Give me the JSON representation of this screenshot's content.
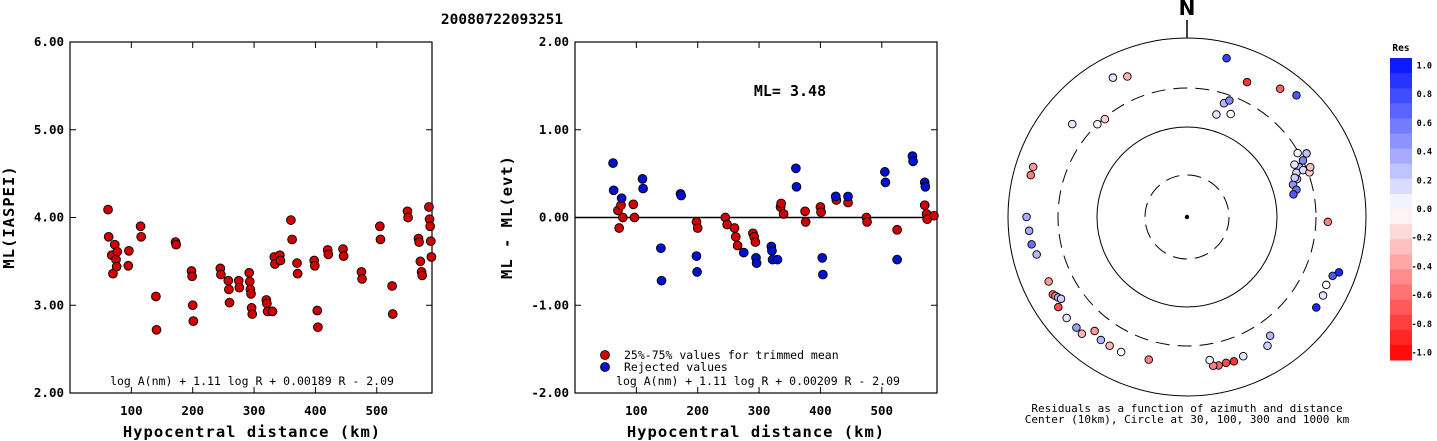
{
  "title": "20080722093251",
  "chart_data": [
    {
      "type": "scatter",
      "xlabel": "Hypocentral distance (km)",
      "ylabel": "ML(IASPEI)",
      "xlim": [
        0,
        590
      ],
      "ylim": [
        2.0,
        6.0
      ],
      "x_ticks": [
        100,
        200,
        300,
        400,
        500
      ],
      "y_ticks": [
        "2.00",
        "3.00",
        "4.00",
        "5.00",
        "6.00"
      ],
      "formula": "log A(nm) + 1.11 log R + 0.00189 R - 2.09",
      "points": [
        [
          62,
          4.09
        ],
        [
          63,
          3.78
        ],
        [
          68,
          3.57
        ],
        [
          70,
          3.36
        ],
        [
          73,
          3.69
        ],
        [
          75,
          3.52
        ],
        [
          76,
          3.44
        ],
        [
          77,
          3.61
        ],
        [
          95,
          3.45
        ],
        [
          96,
          3.62
        ],
        [
          115,
          3.9
        ],
        [
          116,
          3.78
        ],
        [
          140,
          3.1
        ],
        [
          141,
          2.72
        ],
        [
          172,
          3.72
        ],
        [
          173,
          3.69
        ],
        [
          198,
          3.39
        ],
        [
          199,
          3.33
        ],
        [
          200,
          3.0
        ],
        [
          201,
          2.82
        ],
        [
          245,
          3.42
        ],
        [
          246,
          3.35
        ],
        [
          258,
          3.28
        ],
        [
          259,
          3.18
        ],
        [
          260,
          3.03
        ],
        [
          275,
          3.28
        ],
        [
          276,
          3.2
        ],
        [
          292,
          3.37
        ],
        [
          293,
          3.27
        ],
        [
          294,
          3.18
        ],
        [
          295,
          3.13
        ],
        [
          296,
          2.97
        ],
        [
          297,
          2.9
        ],
        [
          320,
          3.06
        ],
        [
          321,
          3.02
        ],
        [
          322,
          2.93
        ],
        [
          330,
          2.93
        ],
        [
          333,
          3.55
        ],
        [
          334,
          3.47
        ],
        [
          342,
          3.57
        ],
        [
          343,
          3.51
        ],
        [
          360,
          3.97
        ],
        [
          362,
          3.75
        ],
        [
          370,
          3.48
        ],
        [
          371,
          3.36
        ],
        [
          398,
          3.51
        ],
        [
          399,
          3.45
        ],
        [
          403,
          2.94
        ],
        [
          404,
          2.75
        ],
        [
          420,
          3.63
        ],
        [
          421,
          3.58
        ],
        [
          445,
          3.64
        ],
        [
          446,
          3.56
        ],
        [
          475,
          3.38
        ],
        [
          476,
          3.3
        ],
        [
          505,
          3.9
        ],
        [
          506,
          3.75
        ],
        [
          525,
          3.22
        ],
        [
          526,
          2.9
        ],
        [
          550,
          4.07
        ],
        [
          551,
          4.0
        ],
        [
          568,
          3.76
        ],
        [
          569,
          3.72
        ],
        [
          571,
          3.5
        ],
        [
          573,
          3.38
        ],
        [
          574,
          3.34
        ],
        [
          585,
          4.12
        ],
        [
          586,
          3.98
        ],
        [
          587,
          3.9
        ],
        [
          588,
          3.73
        ],
        [
          589,
          3.55
        ]
      ]
    },
    {
      "type": "scatter",
      "xlabel": "Hypocentral distance (km)",
      "ylabel": "ML - ML(evt)",
      "xlim": [
        0,
        590
      ],
      "ylim": [
        -2.0,
        2.0
      ],
      "x_ticks": [
        100,
        200,
        300,
        400,
        500
      ],
      "y_ticks": [
        "-2.00",
        "-1.00",
        "0.00",
        "1.00",
        "2.00"
      ],
      "ml_label": "ML= 3.48",
      "legend": [
        "25%-75% values for trimmed mean",
        "Rejected values"
      ],
      "legend_colors": [
        "#d00000",
        "#0010d0"
      ],
      "formula": "log A(nm) + 1.11 log R + 0.00209 R - 2.09",
      "series": [
        {
          "name": "25%-75% values for trimmed mean",
          "color": "#d00000",
          "points": [
            [
              70,
              0.08
            ],
            [
              72,
              -0.12
            ],
            [
              75,
              0.14
            ],
            [
              78,
              0.0
            ],
            [
              95,
              0.15
            ],
            [
              97,
              0.0
            ],
            [
              198,
              -0.05
            ],
            [
              200,
              -0.12
            ],
            [
              245,
              0.0
            ],
            [
              248,
              -0.08
            ],
            [
              260,
              -0.12
            ],
            [
              262,
              -0.22
            ],
            [
              265,
              -0.32
            ],
            [
              290,
              -0.18
            ],
            [
              292,
              -0.22
            ],
            [
              294,
              -0.28
            ],
            [
              335,
              0.12
            ],
            [
              336,
              0.16
            ],
            [
              340,
              0.04
            ],
            [
              375,
              0.07
            ],
            [
              376,
              -0.05
            ],
            [
              400,
              0.12
            ],
            [
              401,
              0.06
            ],
            [
              425,
              0.24
            ],
            [
              426,
              0.2
            ],
            [
              445,
              0.17
            ],
            [
              475,
              0.0
            ],
            [
              476,
              -0.05
            ],
            [
              525,
              -0.14
            ],
            [
              570,
              0.14
            ],
            [
              573,
              0.04
            ],
            [
              574,
              -0.02
            ],
            [
              585,
              0.02
            ]
          ]
        },
        {
          "name": "Rejected values",
          "color": "#0010d0",
          "points": [
            [
              62,
              0.62
            ],
            [
              63,
              0.31
            ],
            [
              76,
              0.22
            ],
            [
              110,
              0.44
            ],
            [
              111,
              0.33
            ],
            [
              140,
              -0.35
            ],
            [
              141,
              -0.72
            ],
            [
              172,
              0.27
            ],
            [
              173,
              0.25
            ],
            [
              198,
              -0.44
            ],
            [
              199,
              -0.62
            ],
            [
              275,
              -0.4
            ],
            [
              295,
              -0.46
            ],
            [
              296,
              -0.52
            ],
            [
              320,
              -0.33
            ],
            [
              321,
              -0.38
            ],
            [
              322,
              -0.48
            ],
            [
              330,
              -0.48
            ],
            [
              360,
              0.56
            ],
            [
              361,
              0.35
            ],
            [
              403,
              -0.46
            ],
            [
              404,
              -0.65
            ],
            [
              425,
              0.24
            ],
            [
              445,
              0.24
            ],
            [
              505,
              0.52
            ],
            [
              506,
              0.4
            ],
            [
              525,
              -0.48
            ],
            [
              550,
              0.7
            ],
            [
              551,
              0.64
            ],
            [
              570,
              0.4
            ],
            [
              571,
              0.35
            ]
          ]
        }
      ]
    },
    {
      "type": "polar-scatter",
      "north_label": "N",
      "caption_line1": "Residuals as a function of azimuth and distance",
      "caption_line2": "Center (10km), Circle at 30, 100, 300 and 1000 km",
      "scale_title": "Res",
      "scale_ticks": [
        "1.0",
        "0.8",
        "0.6",
        "0.4",
        "0.2",
        "0.0",
        "-0.2",
        "-0.4",
        "-0.6",
        "-0.8",
        "-1.0"
      ],
      "color_pos": "#0010ff",
      "color_neg": "#ff0000",
      "points": [
        [
          332,
          600,
          0.1
        ],
        [
          14,
          690,
          0.8
        ],
        [
          337,
          530,
          -0.3
        ],
        [
          24,
          470,
          -0.8
        ],
        [
          36,
          610,
          -0.6
        ],
        [
          42,
          690,
          0.7
        ],
        [
          18,
          230,
          0.3
        ],
        [
          20,
          260,
          0.5
        ],
        [
          16,
          160,
          0.1
        ],
        [
          23,
          185,
          0.0
        ],
        [
          60,
          290,
          0.05
        ],
        [
          62,
          350,
          0.25
        ],
        [
          64,
          300,
          0.5
        ],
        [
          66,
          250,
          0.3
        ],
        [
          68,
          220,
          0.15
        ],
        [
          71,
          210,
          0.3
        ],
        [
          73,
          180,
          0.45
        ],
        [
          68,
          270,
          0.15
        ],
        [
          64,
          230,
          0.1
        ],
        [
          70,
          200,
          0.2
        ],
        [
          76,
          190,
          0.6
        ],
        [
          78,
          170,
          0.7
        ],
        [
          70,
          310,
          -0.2
        ],
        [
          68,
          330,
          -0.25
        ],
        [
          92,
          400,
          -0.5
        ],
        [
          110,
          660,
          0.9
        ],
        [
          112,
          590,
          0.7
        ],
        [
          116,
          560,
          0.0
        ],
        [
          120,
          590,
          0.1
        ],
        [
          125,
          600,
          0.9
        ],
        [
          145,
          440,
          0.3
        ],
        [
          148,
          520,
          0.2
        ],
        [
          158,
          500,
          0.1
        ],
        [
          162,
          520,
          -0.8
        ],
        [
          165,
          510,
          -0.7
        ],
        [
          168,
          520,
          -0.6
        ],
        [
          170,
          510,
          -0.5
        ],
        [
          171,
          440,
          0.05
        ],
        [
          195,
          470,
          -0.5
        ],
        [
          206,
          500,
          0.0
        ],
        [
          211,
          500,
          -0.3
        ],
        [
          215,
          500,
          0.3
        ],
        [
          219,
          460,
          -0.4
        ],
        [
          222,
          590,
          -0.3
        ],
        [
          225,
          580,
          0.4
        ],
        [
          230,
          590,
          0.1
        ],
        [
          235,
          590,
          -0.7
        ],
        [
          240,
          560,
          -0.6
        ],
        [
          239,
          540,
          -0.5
        ],
        [
          238,
          520,
          0.3
        ],
        [
          237,
          500,
          0.2
        ],
        [
          245,
          530,
          -0.4
        ],
        [
          256,
          560,
          0.3
        ],
        [
          260,
          600,
          0.6
        ],
        [
          265,
          610,
          0.35
        ],
        [
          270,
          640,
          0.35
        ],
        [
          285,
          660,
          -0.5
        ],
        [
          288,
          660,
          -0.4
        ],
        [
          309,
          470,
          0.1
        ],
        [
          316,
          300,
          0.0
        ],
        [
          320,
          290,
          -0.2
        ]
      ]
    }
  ]
}
